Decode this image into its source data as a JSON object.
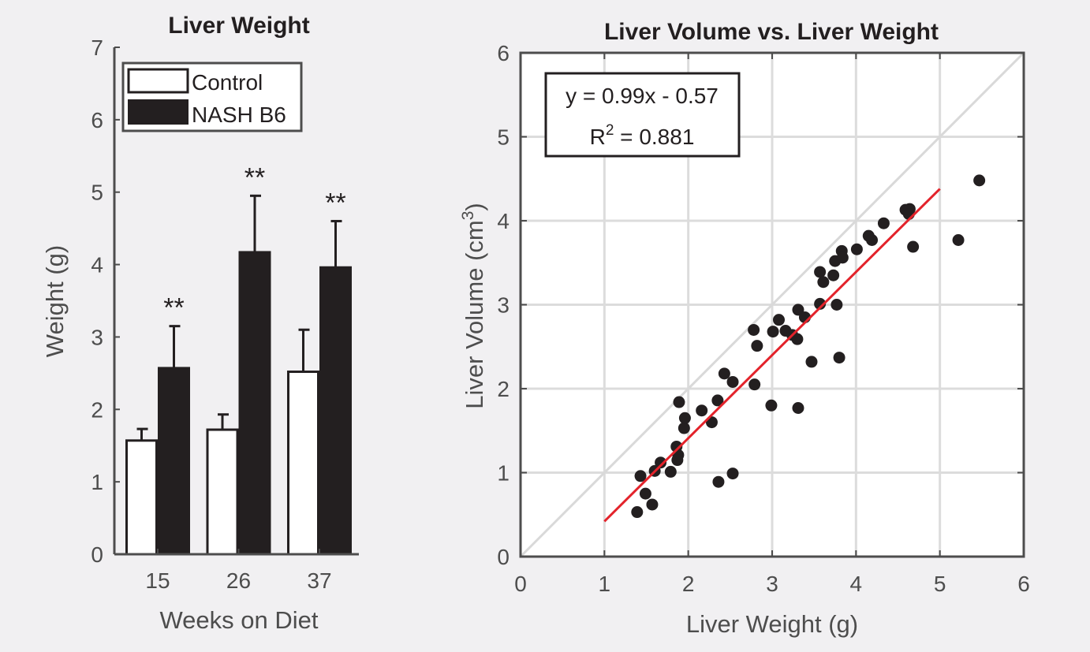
{
  "chart_data": [
    {
      "type": "bar",
      "title": "Liver Weight",
      "xlabel": "Weeks on Diet",
      "ylabel": "Weight (g)",
      "ylim": [
        0,
        7
      ],
      "yticks": [
        0,
        1,
        2,
        3,
        4,
        5,
        6,
        7
      ],
      "categories": [
        "15",
        "26",
        "37"
      ],
      "legend_placement": "top-left",
      "series": [
        {
          "name": "Control",
          "values": [
            1.57,
            1.72,
            2.52
          ],
          "error_upper": [
            1.73,
            1.93,
            3.1
          ],
          "color": "#ffffff"
        },
        {
          "name": "NASH B6",
          "values": [
            2.57,
            4.17,
            3.96
          ],
          "error_upper": [
            3.15,
            4.95,
            4.6
          ],
          "color": "#231f20"
        }
      ],
      "annotations": [
        "**",
        "**",
        "**"
      ]
    },
    {
      "type": "scatter",
      "title": "Liver Volume vs. Liver Weight",
      "xlabel": "Liver Weight (g)",
      "ylabel_main": "Liver Volume (cm",
      "ylabel_sup": "3",
      "ylabel_close": ")",
      "xlim": [
        0,
        6
      ],
      "ylim": [
        0,
        6
      ],
      "xticks": [
        0,
        1,
        2,
        3,
        4,
        5,
        6
      ],
      "yticks": [
        0,
        1,
        2,
        3,
        4,
        5,
        6
      ],
      "grid": true,
      "identity_line": true,
      "fit": {
        "slope": 0.99,
        "intercept": -0.57,
        "x_range": [
          1,
          5
        ],
        "color": "#e3232b"
      },
      "equation_text": "y = 0.99x - 0.57",
      "r2_label": "R",
      "r2_sup": "2",
      "r2_value": " = 0.881",
      "point_color": "#231f20",
      "points": [
        [
          1.39,
          0.53
        ],
        [
          1.43,
          0.96
        ],
        [
          1.49,
          0.75
        ],
        [
          1.57,
          0.62
        ],
        [
          1.6,
          1.02
        ],
        [
          1.67,
          1.12
        ],
        [
          1.79,
          1.01
        ],
        [
          1.86,
          1.31
        ],
        [
          1.88,
          1.21
        ],
        [
          1.87,
          1.15
        ],
        [
          1.89,
          1.84
        ],
        [
          1.95,
          1.53
        ],
        [
          1.96,
          1.65
        ],
        [
          2.16,
          1.74
        ],
        [
          2.28,
          1.6
        ],
        [
          2.35,
          1.86
        ],
        [
          2.36,
          0.89
        ],
        [
          2.43,
          2.18
        ],
        [
          2.53,
          0.99
        ],
        [
          2.53,
          2.08
        ],
        [
          2.78,
          2.7
        ],
        [
          2.79,
          2.05
        ],
        [
          2.82,
          2.51
        ],
        [
          2.99,
          1.8
        ],
        [
          3.01,
          2.68
        ],
        [
          3.08,
          2.82
        ],
        [
          3.16,
          2.69
        ],
        [
          3.24,
          2.64
        ],
        [
          3.3,
          2.59
        ],
        [
          3.31,
          2.94
        ],
        [
          3.31,
          1.77
        ],
        [
          3.39,
          2.85
        ],
        [
          3.47,
          2.32
        ],
        [
          3.57,
          3.39
        ],
        [
          3.57,
          3.01
        ],
        [
          3.61,
          3.27
        ],
        [
          3.73,
          3.35
        ],
        [
          3.75,
          3.52
        ],
        [
          3.77,
          3.0
        ],
        [
          3.8,
          2.37
        ],
        [
          3.83,
          3.64
        ],
        [
          3.84,
          3.56
        ],
        [
          4.01,
          3.66
        ],
        [
          4.15,
          3.82
        ],
        [
          4.19,
          3.77
        ],
        [
          4.33,
          3.97
        ],
        [
          4.59,
          4.13
        ],
        [
          4.64,
          4.14
        ],
        [
          4.63,
          4.08
        ],
        [
          4.68,
          3.69
        ],
        [
          5.22,
          3.77
        ],
        [
          5.47,
          4.48
        ]
      ]
    }
  ]
}
